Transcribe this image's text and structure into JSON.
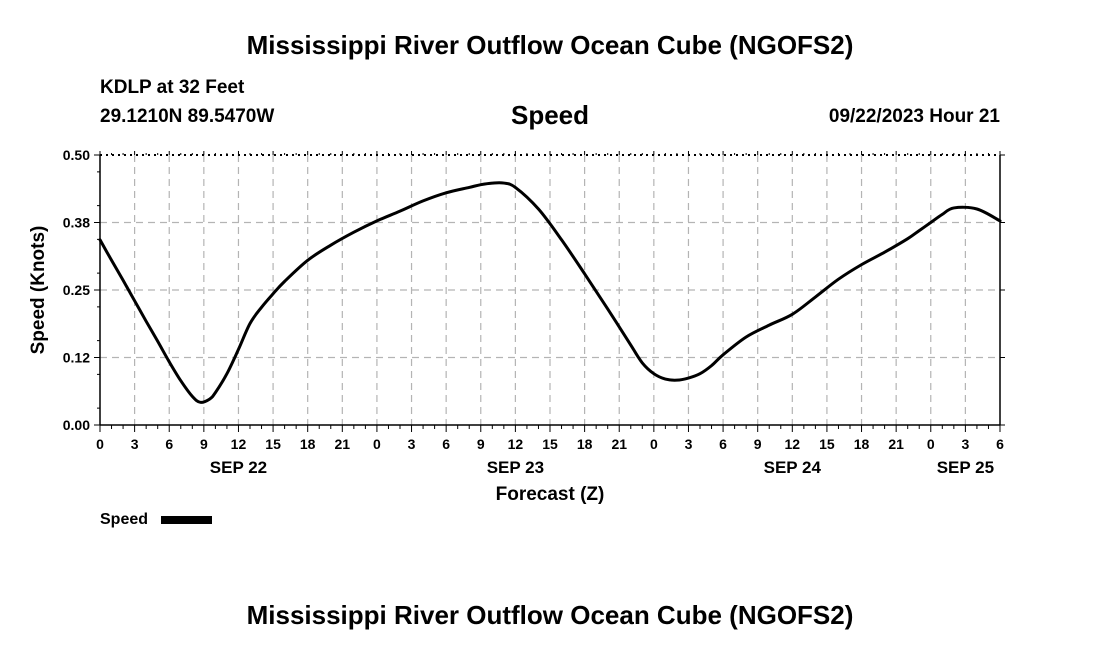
{
  "header": {
    "title": "Mississippi River Outflow Ocean Cube (NGOFS2)",
    "station": "KDLP at 32 Feet",
    "coordinates": "29.1210N  89.5470W",
    "plot_title": "Speed",
    "datetime": "09/22/2023 Hour 21"
  },
  "footer": {
    "title": "Mississippi River Outflow Ocean Cube (NGOFS2)"
  },
  "chart_data": {
    "type": "line",
    "title": "Speed",
    "xlabel": "Forecast (Z)",
    "ylabel": "Speed (Knots)",
    "ylim": [
      0,
      0.5
    ],
    "yticks": [
      "0.00",
      "0.12",
      "0.25",
      "0.38",
      "0.50"
    ],
    "xlim": [
      0,
      78
    ],
    "xtick_labels": [
      "0",
      "3",
      "6",
      "9",
      "12",
      "15",
      "18",
      "21",
      "0",
      "3",
      "6",
      "9",
      "12",
      "15",
      "18",
      "21",
      "0",
      "3",
      "6",
      "9",
      "12",
      "15",
      "18",
      "21",
      "0",
      "3",
      "6"
    ],
    "date_labels": [
      {
        "label": "SEP 22",
        "x": 12
      },
      {
        "label": "SEP 23",
        "x": 36
      },
      {
        "label": "SEP 24",
        "x": 60
      },
      {
        "label": "SEP 25",
        "x": 75
      }
    ],
    "grid": true,
    "legend": "bottom-left",
    "series": [
      {
        "name": "Speed",
        "color": "#000000",
        "x": [
          0,
          1,
          2,
          3,
          4,
          5,
          6,
          7,
          8,
          8.7,
          9.5,
          10,
          11,
          12,
          13,
          14,
          15,
          16,
          18,
          20,
          22,
          24,
          26,
          28,
          30,
          32,
          33,
          34,
          35,
          36,
          38,
          40,
          42,
          44,
          46,
          47,
          48,
          49,
          50,
          51,
          52,
          53,
          54,
          56,
          58,
          60,
          62,
          64,
          66,
          68,
          70,
          71,
          72,
          73,
          74,
          76,
          78
        ],
        "y": [
          0.343,
          0.305,
          0.268,
          0.23,
          0.192,
          0.155,
          0.117,
          0.082,
          0.053,
          0.042,
          0.048,
          0.06,
          0.095,
          0.14,
          0.188,
          0.218,
          0.243,
          0.266,
          0.305,
          0.333,
          0.357,
          0.378,
          0.396,
          0.415,
          0.43,
          0.44,
          0.445,
          0.448,
          0.448,
          0.44,
          0.4,
          0.343,
          0.28,
          0.215,
          0.148,
          0.115,
          0.095,
          0.085,
          0.083,
          0.087,
          0.095,
          0.11,
          0.13,
          0.163,
          0.185,
          0.205,
          0.237,
          0.27,
          0.297,
          0.32,
          0.345,
          0.36,
          0.375,
          0.39,
          0.402,
          0.4,
          0.378
        ]
      }
    ]
  }
}
